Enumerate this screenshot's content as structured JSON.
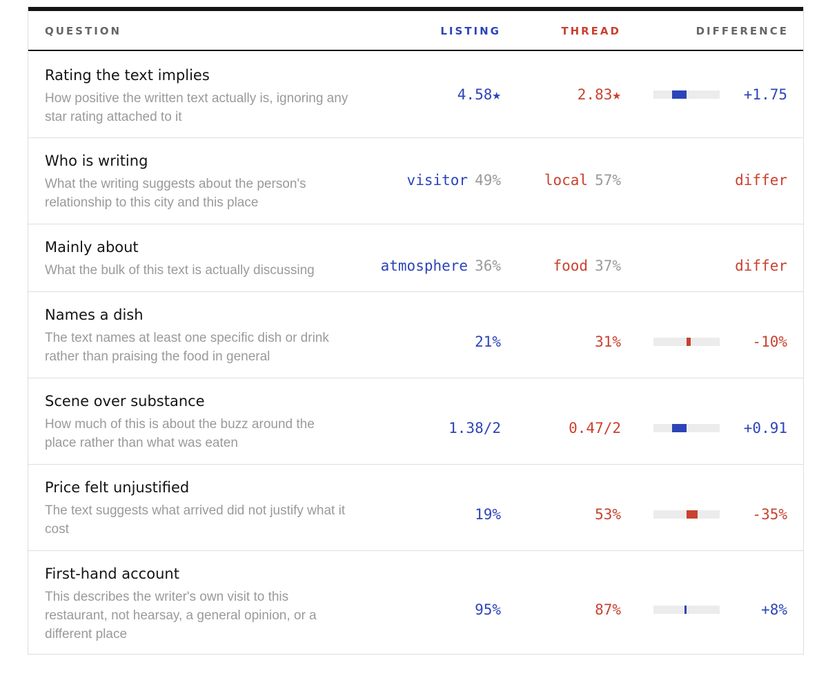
{
  "header": {
    "question": "QUESTION",
    "listing": "LISTING",
    "thread": "THREAD",
    "difference": "DIFFERENCE"
  },
  "colors": {
    "listing": "#2c44b8",
    "thread": "#c9412f",
    "bar_track": "#ececec"
  },
  "rows": [
    {
      "title": "Rating the text implies",
      "desc": "How positive the written text actually is, ignoring any star rating attached to it",
      "listing": "4.58★",
      "thread": "2.83★",
      "diff": "+1.75",
      "diff_sign": "positive",
      "bar_share": 0.22
    },
    {
      "title": "Who is writing",
      "desc": "What the writing suggests about the person's relationship to this city and this place",
      "listing": "visitor",
      "listing_pct": "49%",
      "thread": "local",
      "thread_pct": "57%",
      "diff": "differ",
      "diff_sign": "differ"
    },
    {
      "title": "Mainly about",
      "desc": "What the bulk of this text is actually discussing",
      "listing": "atmosphere",
      "listing_pct": "36%",
      "thread": "food",
      "thread_pct": "37%",
      "diff": "differ",
      "diff_sign": "differ"
    },
    {
      "title": "Names a dish",
      "desc": "The text names at least one specific dish or drink rather than praising the food in general",
      "listing": "21%",
      "thread": "31%",
      "diff": "-10%",
      "diff_sign": "negative",
      "bar_share": 0.06
    },
    {
      "title": "Scene over substance",
      "desc": "How much of this is about the buzz around the place rather than what was eaten",
      "listing": "1.38/2",
      "thread": "0.47/2",
      "diff": "+0.91",
      "diff_sign": "positive",
      "bar_share": 0.22
    },
    {
      "title": "Price felt unjustified",
      "desc": "The text suggests what arrived did not justify what it cost",
      "listing": "19%",
      "thread": "53%",
      "diff": "-35%",
      "diff_sign": "negative",
      "bar_share": 0.17
    },
    {
      "title": "First-hand account",
      "desc": "This describes the writer's own visit to this restaurant, not hearsay, a general opinion, or a different place",
      "listing": "95%",
      "thread": "87%",
      "diff": "+8%",
      "diff_sign": "positive",
      "bar_share": 0.03
    }
  ]
}
